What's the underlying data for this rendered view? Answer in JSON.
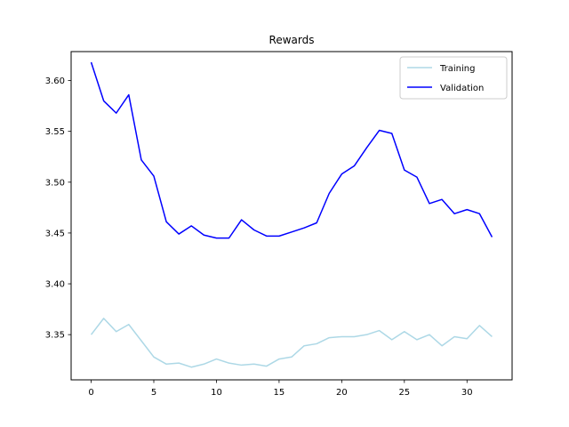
{
  "chart_data": {
    "type": "line",
    "title": "Rewards",
    "xlabel": "",
    "ylabel": "",
    "xlim": [
      -1.6,
      33.6
    ],
    "ylim": [
      3.3055,
      3.6285
    ],
    "xticks": [
      0,
      5,
      10,
      15,
      20,
      25,
      30
    ],
    "xtick_labels": [
      "0",
      "5",
      "10",
      "15",
      "20",
      "25",
      "30"
    ],
    "yticks": [
      3.35,
      3.4,
      3.45,
      3.5,
      3.55,
      3.6
    ],
    "ytick_labels": [
      "3.35",
      "3.40",
      "3.45",
      "3.50",
      "3.55",
      "3.60"
    ],
    "grid": false,
    "legend_position": "top-right",
    "x": [
      0,
      1,
      2,
      3,
      4,
      5,
      6,
      7,
      8,
      9,
      10,
      11,
      12,
      13,
      14,
      15,
      16,
      17,
      18,
      19,
      20,
      21,
      22,
      23,
      24,
      25,
      26,
      27,
      28,
      29,
      30,
      31,
      32
    ],
    "series": [
      {
        "name": "Training",
        "color": "#add8e6",
        "values": [
          3.35,
          3.366,
          3.353,
          3.36,
          3.344,
          3.328,
          3.321,
          3.322,
          3.318,
          3.321,
          3.326,
          3.322,
          3.32,
          3.321,
          3.319,
          3.326,
          3.328,
          3.339,
          3.341,
          3.347,
          3.348,
          3.348,
          3.35,
          3.354,
          3.345,
          3.353,
          3.345,
          3.35,
          3.339,
          3.348,
          3.346,
          3.359,
          3.348
        ]
      },
      {
        "name": "Validation",
        "color": "#0000ff",
        "values": [
          3.618,
          3.58,
          3.568,
          3.586,
          3.522,
          3.506,
          3.461,
          3.449,
          3.457,
          3.448,
          3.445,
          3.445,
          3.463,
          3.453,
          3.447,
          3.447,
          3.451,
          3.455,
          3.46,
          3.489,
          3.508,
          3.516,
          3.534,
          3.551,
          3.548,
          3.512,
          3.505,
          3.479,
          3.483,
          3.469,
          3.473,
          3.469,
          3.446
        ]
      }
    ]
  }
}
